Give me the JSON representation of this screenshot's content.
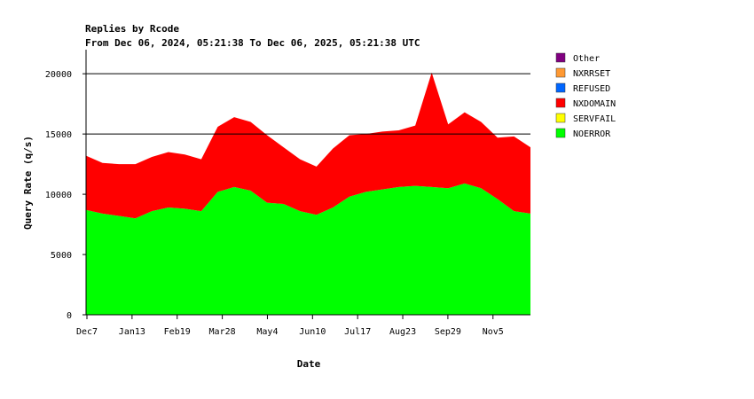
{
  "chart_data": {
    "type": "area",
    "title": "Replies by Rcode",
    "subtitle": "From Dec 06, 2024, 05:21:38 To Dec 06, 2025, 05:21:38 UTC",
    "xlabel": "Date",
    "ylabel": "Query Rate (q/s)",
    "ylim": [
      0,
      22000
    ],
    "yticks": [
      0,
      5000,
      10000,
      15000,
      20000
    ],
    "x_tick_labels": [
      "Dec7",
      "Jan13",
      "Feb19",
      "Mar28",
      "May4",
      "Jun10",
      "Jul17",
      "Aug23",
      "Sep29",
      "Nov5"
    ],
    "gridlines_at": [
      15000,
      20000
    ],
    "stacked": true,
    "legend_position": "right",
    "x": [
      "Dec7",
      "Dec21",
      "Jan4",
      "Jan18",
      "Feb1",
      "Feb15",
      "Mar1",
      "Mar15",
      "Mar29",
      "Apr12",
      "Apr26",
      "May10",
      "May24",
      "Jun7",
      "Jun21",
      "Jul5",
      "Jul19",
      "Aug2",
      "Aug16",
      "Aug30",
      "Sep13",
      "Sep20",
      "Sep27",
      "Oct11",
      "Oct25",
      "Nov8",
      "Nov22",
      "Dec6"
    ],
    "series": [
      {
        "name": "NOERROR",
        "color": "#00ff00",
        "values": [
          8700,
          8400,
          8200,
          8000,
          8600,
          8900,
          8800,
          8600,
          10200,
          10600,
          10300,
          9300,
          9200,
          8600,
          8300,
          8900,
          9800,
          10200,
          10400,
          10600,
          10700,
          10600,
          10500,
          10900,
          10500,
          9600,
          8600,
          8400
        ]
      },
      {
        "name": "SERVFAIL",
        "color": "#ffff00",
        "values": [
          0,
          0,
          0,
          0,
          0,
          0,
          0,
          0,
          0,
          0,
          0,
          0,
          0,
          0,
          0,
          0,
          0,
          0,
          0,
          0,
          0,
          0,
          0,
          0,
          0,
          0,
          0,
          0
        ]
      },
      {
        "name": "NXDOMAIN",
        "color": "#ff0000",
        "values": [
          4500,
          4200,
          4300,
          4500,
          4500,
          4600,
          4500,
          4300,
          5400,
          5800,
          5700,
          5600,
          4700,
          4300,
          4000,
          4900,
          5100,
          4800,
          4800,
          4700,
          5000,
          9500,
          5300,
          5900,
          5500,
          5100,
          6200,
          5500
        ]
      },
      {
        "name": "REFUSED",
        "color": "#0066ff",
        "values": [
          0,
          0,
          0,
          0,
          0,
          0,
          0,
          0,
          0,
          0,
          0,
          0,
          0,
          0,
          0,
          0,
          0,
          0,
          0,
          0,
          0,
          0,
          0,
          0,
          0,
          0,
          0,
          0
        ]
      },
      {
        "name": "NXRRSET",
        "color": "#ff9933",
        "values": [
          0,
          0,
          0,
          0,
          0,
          0,
          0,
          0,
          0,
          0,
          0,
          0,
          0,
          0,
          0,
          0,
          0,
          0,
          0,
          0,
          0,
          0,
          0,
          0,
          0,
          0,
          0,
          0
        ]
      },
      {
        "name": "Other",
        "color": "#800080",
        "values": [
          0,
          0,
          0,
          0,
          0,
          0,
          0,
          0,
          0,
          0,
          0,
          0,
          0,
          0,
          0,
          0,
          0,
          0,
          0,
          0,
          0,
          0,
          0,
          0,
          0,
          0,
          0,
          0
        ]
      }
    ],
    "legend": [
      "Other",
      "NXRRSET",
      "REFUSED",
      "NXDOMAIN",
      "SERVFAIL",
      "NOERROR"
    ]
  }
}
